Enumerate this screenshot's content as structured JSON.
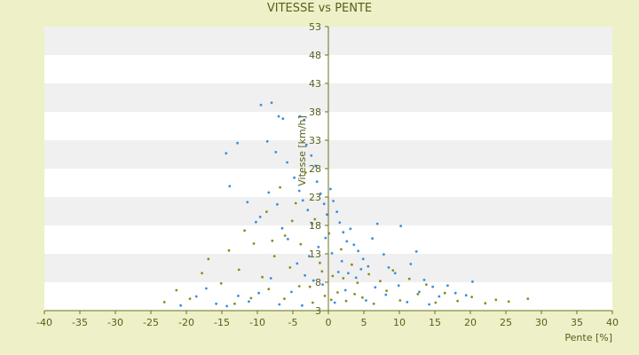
{
  "chart_data": {
    "type": "scatter",
    "title": "VITESSE vs PENTE",
    "xlabel": "Pente [%]",
    "ylabel": "Vitesse [km/h]",
    "xlim": [
      -40,
      40
    ],
    "ylim": [
      3,
      53
    ],
    "x_ticks": [
      "-40",
      "-35",
      "-30",
      "-25",
      "-20",
      "-15",
      "-10",
      "-5",
      "0",
      "5",
      "10",
      "15",
      "20",
      "25",
      "30",
      "35",
      "40"
    ],
    "y_ticks": [
      "3",
      "8",
      "13",
      "18",
      "23",
      "28",
      "33",
      "38",
      "43",
      "48",
      "53"
    ],
    "grid": "alternating-horizontal-bands",
    "colors": {
      "background": "#eef0c8",
      "plot_band_light": "#ffffff",
      "plot_band_dark": "#f0f0f0",
      "axis": "#6b7020",
      "text": "#55601a"
    },
    "series": [
      {
        "color": "#3a8fd9",
        "points": [
          [
            -9.5,
            39.2
          ],
          [
            -8,
            39.6
          ],
          [
            -7,
            37.2
          ],
          [
            -6.4,
            36.8
          ],
          [
            -4,
            37.2
          ],
          [
            -3.4,
            36.6
          ],
          [
            -12.8,
            32.5
          ],
          [
            -14.4,
            30.7
          ],
          [
            -8.6,
            32.8
          ],
          [
            -7.4,
            30.9
          ],
          [
            -5.8,
            29.1
          ],
          [
            -3.1,
            32.2
          ],
          [
            -2.4,
            30.3
          ],
          [
            -1.8,
            28.5
          ],
          [
            -13.9,
            24.9
          ],
          [
            -11.4,
            22.1
          ],
          [
            -10.2,
            18.6
          ],
          [
            -9.6,
            19.5
          ],
          [
            -8.4,
            23.8
          ],
          [
            -7.2,
            21.7
          ],
          [
            -6.5,
            17.5
          ],
          [
            -5.7,
            15.6
          ],
          [
            -4.8,
            26.4
          ],
          [
            -4.1,
            24.1
          ],
          [
            -3.6,
            22.4
          ],
          [
            -2.9,
            20.7
          ],
          [
            -2.3,
            18.3
          ],
          [
            -1.6,
            25.7
          ],
          [
            -1.1,
            23.6
          ],
          [
            -0.6,
            21.8
          ],
          [
            -0.2,
            19.9
          ],
          [
            0.3,
            24.4
          ],
          [
            0.7,
            22.3
          ],
          [
            1.2,
            20.4
          ],
          [
            1.6,
            18.5
          ],
          [
            2.1,
            16.8
          ],
          [
            2.6,
            15.2
          ],
          [
            3.1,
            17.4
          ],
          [
            3.6,
            14.6
          ],
          [
            4.2,
            13.5
          ],
          [
            4.9,
            12.1
          ],
          [
            5.6,
            10.8
          ],
          [
            6.2,
            15.7
          ],
          [
            6.9,
            18.3
          ],
          [
            7.8,
            12.9
          ],
          [
            8.5,
            10.6
          ],
          [
            9.4,
            9.6
          ],
          [
            10.2,
            17.9
          ],
          [
            11.6,
            11.2
          ],
          [
            12.4,
            13.4
          ],
          [
            13.5,
            8.4
          ],
          [
            14.7,
            7.2
          ],
          [
            15.6,
            5.5
          ],
          [
            16.8,
            7.4
          ],
          [
            17.9,
            6.1
          ],
          [
            19.4,
            5.7
          ],
          [
            20.3,
            8.1
          ],
          [
            -20.8,
            3.9
          ],
          [
            -18.6,
            5.5
          ],
          [
            -17.2,
            6.9
          ],
          [
            -15.8,
            4.2
          ],
          [
            -14.3,
            3.8
          ],
          [
            -12.7,
            5.6
          ],
          [
            -11.2,
            4.6
          ],
          [
            -9.8,
            6.1
          ],
          [
            -8.1,
            8.7
          ],
          [
            -6.9,
            4.1
          ],
          [
            -5.2,
            6.3
          ],
          [
            -3.7,
            3.9
          ],
          [
            -2.1,
            8.3
          ],
          [
            -0.8,
            7.6
          ],
          [
            0.9,
            4.4
          ],
          [
            2.4,
            6.6
          ],
          [
            3.9,
            8.8
          ],
          [
            5.3,
            4.8
          ],
          [
            6.6,
            7.1
          ],
          [
            8.1,
            5.8
          ],
          [
            9.9,
            7.4
          ],
          [
            11.1,
            4.5
          ],
          [
            12.8,
            6.3
          ],
          [
            14.2,
            4.1
          ],
          [
            -1.4,
            14.2
          ],
          [
            -0.4,
            15.8
          ],
          [
            0.5,
            13.1
          ],
          [
            1.9,
            11.7
          ],
          [
            -2.7,
            12.6
          ],
          [
            -4.4,
            11.3
          ],
          [
            2.8,
            9.6
          ],
          [
            4.6,
            10.3
          ],
          [
            -3.3,
            9.2
          ],
          [
            1.4,
            9.8
          ]
        ]
      },
      {
        "color": "#8a8f18",
        "points": [
          [
            -23.1,
            4.5
          ],
          [
            -21.4,
            6.6
          ],
          [
            -19.5,
            5.1
          ],
          [
            -17.8,
            9.6
          ],
          [
            -16.9,
            12.1
          ],
          [
            -15.1,
            7.8
          ],
          [
            -14.0,
            13.6
          ],
          [
            -12.6,
            10.2
          ],
          [
            -11.8,
            17.1
          ],
          [
            -10.5,
            14.8
          ],
          [
            -9.3,
            8.9
          ],
          [
            -8.7,
            20.4
          ],
          [
            -7.6,
            12.6
          ],
          [
            -6.8,
            24.7
          ],
          [
            -6.1,
            16.2
          ],
          [
            -5.4,
            10.6
          ],
          [
            -4.6,
            21.9
          ],
          [
            -3.9,
            14.7
          ],
          [
            -3.2,
            27.3
          ],
          [
            -2.6,
            7.2
          ],
          [
            -1.9,
            19.1
          ],
          [
            -1.2,
            11.4
          ],
          [
            -0.5,
            5.6
          ],
          [
            0.1,
            16.6
          ],
          [
            0.6,
            9.1
          ],
          [
            1.3,
            6.2
          ],
          [
            1.8,
            13.8
          ],
          [
            2.5,
            4.7
          ],
          [
            3.3,
            11.1
          ],
          [
            4.1,
            7.9
          ],
          [
            4.8,
            5.3
          ],
          [
            5.7,
            9.4
          ],
          [
            6.4,
            4.2
          ],
          [
            7.3,
            8.2
          ],
          [
            8.2,
            6.5
          ],
          [
            9.1,
            10.1
          ],
          [
            10.1,
            4.8
          ],
          [
            11.4,
            8.6
          ],
          [
            12.6,
            5.9
          ],
          [
            13.8,
            7.6
          ],
          [
            15.1,
            4.4
          ],
          [
            16.4,
            6.1
          ],
          [
            18.2,
            4.7
          ],
          [
            20.2,
            5.4
          ],
          [
            22.1,
            4.3
          ],
          [
            23.6,
            4.9
          ],
          [
            25.4,
            4.6
          ],
          [
            28.1,
            5.1
          ],
          [
            -13.2,
            4.2
          ],
          [
            -10.9,
            5.2
          ],
          [
            -8.4,
            6.8
          ],
          [
            -6.2,
            5.1
          ],
          [
            -4.1,
            7.3
          ],
          [
            -2.2,
            4.4
          ],
          [
            -0.9,
            9.9
          ],
          [
            0.4,
            4.9
          ],
          [
            2.1,
            8.7
          ],
          [
            3.7,
            5.9
          ],
          [
            -7.9,
            15.3
          ],
          [
            -5.1,
            18.8
          ]
        ]
      }
    ]
  }
}
